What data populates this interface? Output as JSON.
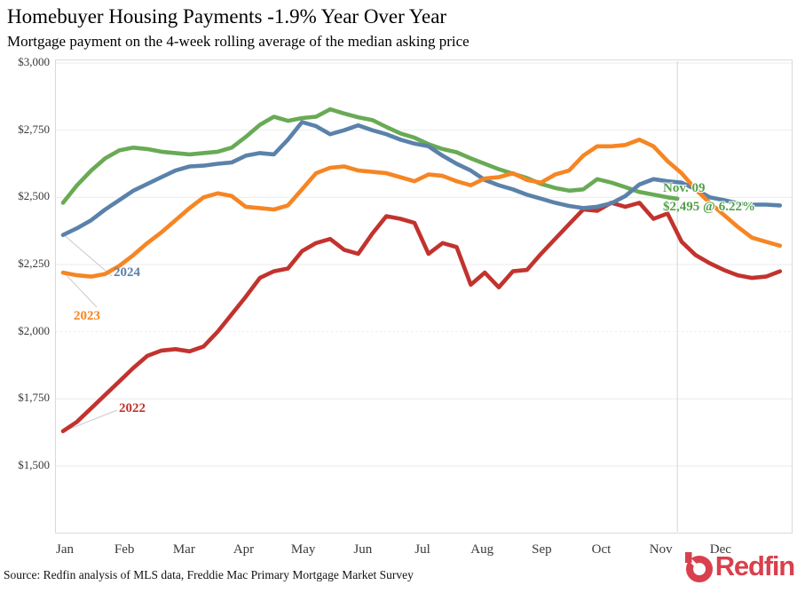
{
  "header": {
    "title": "Homebuyer Housing Payments -1.9% Year Over Year",
    "subtitle": "Mortgage payment on the 4-week rolling average of the median asking price"
  },
  "footer": {
    "source": "Source: Redfin analysis of MLS data, Freddie Mac Primary Mortgage Market Survey",
    "logo_text": "Redfin"
  },
  "colors": {
    "grid": "#ebebeb",
    "plot_border": "#d9d9d9",
    "reference_line": "#dcdcdc",
    "leader_line": "#c9c9c9",
    "logo_red": "#d9404d",
    "annotation_green": "#53a149"
  },
  "chart_data": {
    "type": "line",
    "title": "Homebuyer Housing Payments -1.9% Year Over Year",
    "subtitle": "Mortgage payment on the 4-week rolling average of the median asking price",
    "x_axis": {
      "tick_labels": [
        "Jan",
        "Feb",
        "Mar",
        "Apr",
        "May",
        "Jun",
        "Jul",
        "Aug",
        "Sep",
        "Oct",
        "Nov",
        "Dec"
      ],
      "unit": "week of year"
    },
    "y_axis": {
      "ylim": [
        1500,
        3000
      ],
      "ticks": [
        {
          "label": "$3,000",
          "value": 3000,
          "dotted": false
        },
        {
          "label": "$2,750",
          "value": 2750,
          "dotted": false
        },
        {
          "label": "$2,500",
          "value": 2500,
          "dotted": false
        },
        {
          "label": "$2,250",
          "value": 2250,
          "dotted": false
        },
        {
          "label": "$2,000",
          "value": 2000,
          "dotted": true
        },
        {
          "label": "$1,750",
          "value": 1750,
          "dotted": false
        },
        {
          "label": "$1,500",
          "value": 1500,
          "dotted": false
        }
      ]
    },
    "grid": "horizontal only",
    "legend": "direct line labels",
    "annotation": {
      "line1": "Nov. 09",
      "line2": "$2,495 @ 6.22%"
    },
    "reference_week": 43.7,
    "series": [
      {
        "name": "2022",
        "color": "#c2332e",
        "values": [
          1630,
          1665,
          1715,
          1765,
          1815,
          1865,
          1910,
          1930,
          1935,
          1927,
          1945,
          2000,
          2065,
          2130,
          2200,
          2225,
          2235,
          2300,
          2330,
          2345,
          2305,
          2290,
          2365,
          2430,
          2420,
          2405,
          2290,
          2330,
          2315,
          2175,
          2220,
          2165,
          2225,
          2230,
          2290,
          2345,
          2400,
          2455,
          2450,
          2480,
          2465,
          2480,
          2420,
          2440,
          2335,
          2285,
          2255,
          2230,
          2210,
          2200,
          2205,
          2225
        ]
      },
      {
        "name": "2023",
        "color": "#f68523",
        "values": [
          2220,
          2210,
          2205,
          2215,
          2245,
          2285,
          2330,
          2370,
          2415,
          2460,
          2500,
          2515,
          2505,
          2465,
          2460,
          2455,
          2470,
          2530,
          2590,
          2610,
          2615,
          2600,
          2595,
          2590,
          2575,
          2560,
          2585,
          2580,
          2560,
          2545,
          2570,
          2575,
          2590,
          2565,
          2555,
          2585,
          2600,
          2655,
          2690,
          2690,
          2695,
          2715,
          2690,
          2635,
          2590,
          2530,
          2480,
          2435,
          2390,
          2350,
          2335,
          2320
        ]
      },
      {
        "name": "2024",
        "color": "#5a82aa",
        "values": [
          2360,
          2385,
          2415,
          2455,
          2490,
          2525,
          2550,
          2575,
          2600,
          2615,
          2618,
          2625,
          2630,
          2655,
          2665,
          2660,
          2715,
          2780,
          2765,
          2735,
          2750,
          2768,
          2750,
          2735,
          2715,
          2700,
          2690,
          2655,
          2625,
          2600,
          2565,
          2545,
          2530,
          2510,
          2495,
          2480,
          2468,
          2460,
          2465,
          2478,
          2505,
          2548,
          2568,
          2560,
          2555,
          2530,
          2500,
          2490,
          2478,
          2473,
          2473,
          2470
        ]
      },
      {
        "name": "",
        "color": "#69aa55",
        "ends_at_reference": true,
        "values": [
          2480,
          2545,
          2600,
          2645,
          2675,
          2685,
          2680,
          2670,
          2665,
          2660,
          2665,
          2670,
          2685,
          2725,
          2770,
          2800,
          2785,
          2795,
          2800,
          2828,
          2812,
          2798,
          2788,
          2762,
          2738,
          2722,
          2698,
          2680,
          2668,
          2645,
          2625,
          2605,
          2588,
          2572,
          2550,
          2535,
          2525,
          2530,
          2568,
          2555,
          2538,
          2520,
          2510,
          2500,
          2495
        ]
      }
    ]
  }
}
